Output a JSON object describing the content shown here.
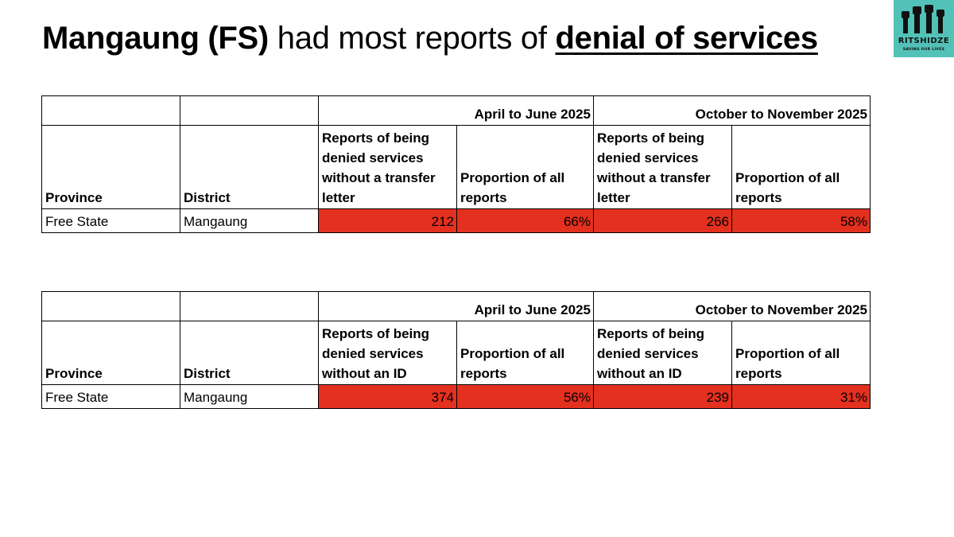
{
  "title": {
    "part1": "Mangaung (FS)",
    "part2": " had most reports of ",
    "part3": "denial of services"
  },
  "logo": {
    "name": "RITSHIDZE",
    "tagline": "SAVING OUR LIVES",
    "color": "#52c2b8"
  },
  "highlight_color": "#e4301f",
  "table1": {
    "periods": [
      "April to June 2025",
      "October to November 2025"
    ],
    "headers": {
      "province": "Province",
      "district": "District",
      "metric": "Reports of being denied services without a transfer letter",
      "proportion": "Proportion of all reports"
    },
    "rows": [
      {
        "province": "Free State",
        "district": "Mangaung",
        "v1": "212",
        "p1": "66%",
        "v2": "266",
        "p2": "58%"
      }
    ]
  },
  "table2": {
    "periods": [
      "April to June 2025",
      "October to November 2025"
    ],
    "headers": {
      "province": "Province",
      "district": "District",
      "metric": "Reports of being denied services without an ID",
      "proportion": "Proportion of all reports"
    },
    "rows": [
      {
        "province": "Free State",
        "district": "Mangaung",
        "v1": "374",
        "p1": "56%",
        "v2": "239",
        "p2": "31%"
      }
    ]
  }
}
